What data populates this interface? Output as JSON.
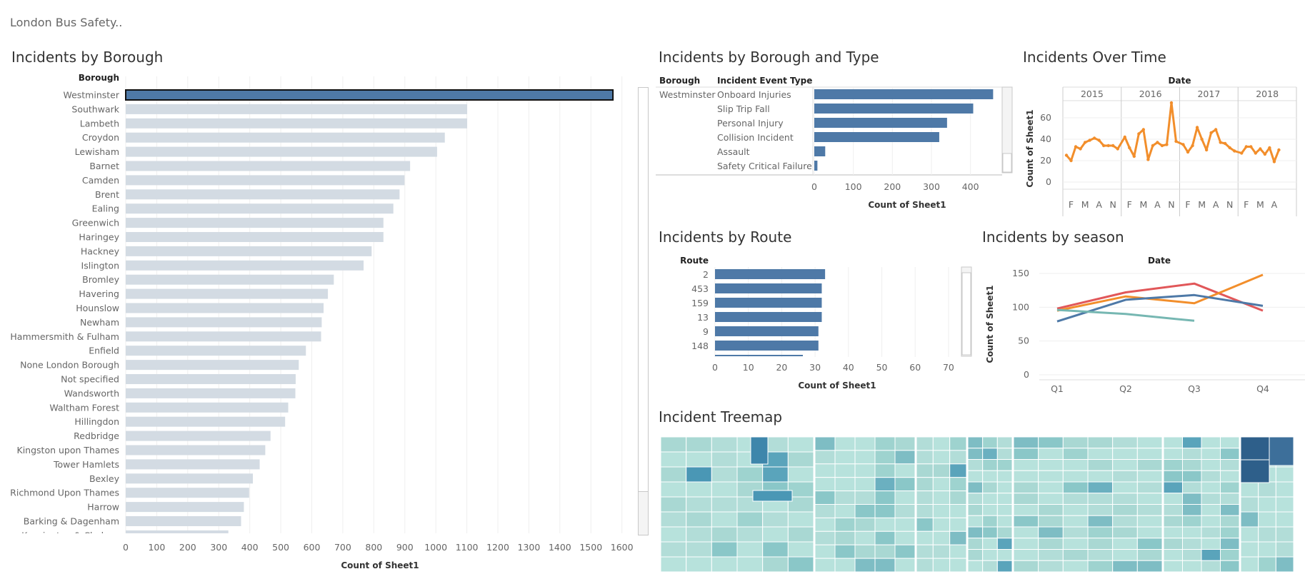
{
  "dashboard_title": "London Bus Safety..",
  "borough": {
    "title": "Incidents by Borough",
    "row_header": "Borough",
    "xlabel": "Count of Sheet1",
    "ticks": [
      0,
      100,
      200,
      300,
      400,
      500,
      600,
      700,
      800,
      900,
      1000,
      1100,
      1200,
      1300,
      1400,
      1500,
      1600
    ],
    "colors": {
      "selected": "#4e79a7",
      "other": "#d3dbe3"
    }
  },
  "type": {
    "title": "Incidents by Borough and Type",
    "col1": "Borough",
    "col2": "Incident Event Type",
    "borough_value": "Westminster",
    "xlabel": "Count of Sheet1",
    "ticks": [
      0,
      100,
      200,
      300,
      400
    ]
  },
  "time": {
    "title": "Incidents Over Time",
    "col_header": "Date",
    "years": [
      "2015",
      "2016",
      "2017",
      "2018"
    ],
    "month_labels": [
      "F",
      "M",
      "A",
      "N",
      "F",
      "M",
      "A",
      "N",
      "F",
      "M",
      "A",
      "N",
      "F",
      "M",
      "A"
    ],
    "ylabel": "Count of Sheet1",
    "yticks": [
      0,
      20,
      40,
      60
    ],
    "color": "#f28e2b"
  },
  "route": {
    "title": "Incidents by Route",
    "row_header": "Route",
    "xlabel": "Count of Sheet1",
    "ticks": [
      0,
      10,
      20,
      30,
      40,
      50,
      60,
      70
    ]
  },
  "season": {
    "title": "Incidents by season",
    "col_header": "Date",
    "ylabel": "Count of Sheet1",
    "yticks": [
      0,
      50,
      100,
      150
    ],
    "quarters": [
      "Q1",
      "Q2",
      "Q3",
      "Q4"
    ]
  },
  "treemap": {
    "title": "Incident Treemap"
  },
  "chart_data": [
    {
      "type": "bar",
      "title": "Incidents by Borough",
      "xlabel": "Count of Sheet1",
      "categories": [
        "Westminster",
        "Southwark",
        "Lambeth",
        "Croydon",
        "Lewisham",
        "Barnet",
        "Camden",
        "Brent",
        "Ealing",
        "Greenwich",
        "Haringey",
        "Hackney",
        "Islington",
        "Bromley",
        "Havering",
        "Hounslow",
        "Newham",
        "Hammersmith & Fulham",
        "Enfield",
        "None London Borough",
        "Not specified",
        "Wandsworth",
        "Waltham Forest",
        "Hillingdon",
        "Redbridge",
        "Kingston upon Thames",
        "Tower Hamlets",
        "Bexley",
        "Richmond Upon Thames",
        "Harrow",
        "Barking & Dagenham",
        "Kensington & Chelsea"
      ],
      "values": [
        1571,
        1101,
        1101,
        1029,
        1004,
        917,
        899,
        883,
        863,
        831,
        831,
        793,
        767,
        671,
        652,
        638,
        632,
        630,
        581,
        558,
        548,
        547,
        524,
        514,
        467,
        450,
        432,
        410,
        398,
        381,
        372,
        331
      ],
      "xlim": [
        0,
        1650
      ]
    },
    {
      "type": "bar",
      "title": "Incidents by Borough and Type",
      "xlabel": "Count of Sheet1",
      "categories": [
        "Onboard Injuries",
        "Slip Trip Fall",
        "Personal Injury",
        "Collision Incident",
        "Assault",
        "Safety Critical Failure"
      ],
      "values": [
        458,
        407,
        340,
        320,
        28,
        8
      ],
      "xlim": [
        0,
        480
      ]
    },
    {
      "type": "line",
      "title": "Incidents Over Time",
      "ylabel": "Count of Sheet1",
      "x": [
        "2015-01",
        "2015-02",
        "2015-03",
        "2015-04",
        "2015-05",
        "2015-06",
        "2015-07",
        "2015-08",
        "2015-09",
        "2015-10",
        "2015-11",
        "2015-12",
        "2016-01",
        "2016-02",
        "2016-03",
        "2016-04",
        "2016-05",
        "2016-06",
        "2016-07",
        "2016-08",
        "2016-09",
        "2016-10",
        "2016-11",
        "2016-12",
        "2017-01",
        "2017-02",
        "2017-03",
        "2017-04",
        "2017-05",
        "2017-06",
        "2017-07",
        "2017-08",
        "2017-09",
        "2017-10",
        "2017-11",
        "2017-12",
        "2018-01",
        "2018-02",
        "2018-03",
        "2018-04",
        "2018-05",
        "2018-06",
        "2018-07",
        "2018-08",
        "2018-09"
      ],
      "values": [
        25,
        20,
        33,
        31,
        37,
        39,
        41,
        39,
        34,
        34,
        34,
        31,
        42,
        32,
        24,
        45,
        49,
        21,
        34,
        37,
        34,
        35,
        74,
        38,
        35,
        28,
        34,
        51,
        40,
        30,
        46,
        49,
        37,
        36,
        32,
        29,
        27,
        33,
        33,
        27,
        31,
        26,
        32,
        19,
        30
      ],
      "ylim": [
        0,
        76
      ]
    },
    {
      "type": "bar",
      "title": "Incidents by Route",
      "xlabel": "Count of Sheet1",
      "categories": [
        "2",
        "453",
        "159",
        "13",
        "9",
        "148"
      ],
      "values": [
        33,
        32,
        32,
        32,
        31,
        31
      ],
      "xlim": [
        0,
        75
      ]
    },
    {
      "type": "line",
      "title": "Incidents by season",
      "ylabel": "Count of Sheet1",
      "categories": [
        "Q1",
        "Q2",
        "Q3",
        "Q4"
      ],
      "series": [
        {
          "color": "#e15759",
          "values": [
            98,
            122,
            135,
            95
          ]
        },
        {
          "color": "#f28e2b",
          "values": [
            95,
            116,
            106,
            148
          ]
        },
        {
          "color": "#4e79a7",
          "values": [
            79,
            111,
            118,
            102
          ]
        },
        {
          "color": "#76b7b2",
          "values": [
            96,
            90,
            80,
            null
          ]
        }
      ],
      "ylim": [
        0,
        150
      ]
    }
  ]
}
